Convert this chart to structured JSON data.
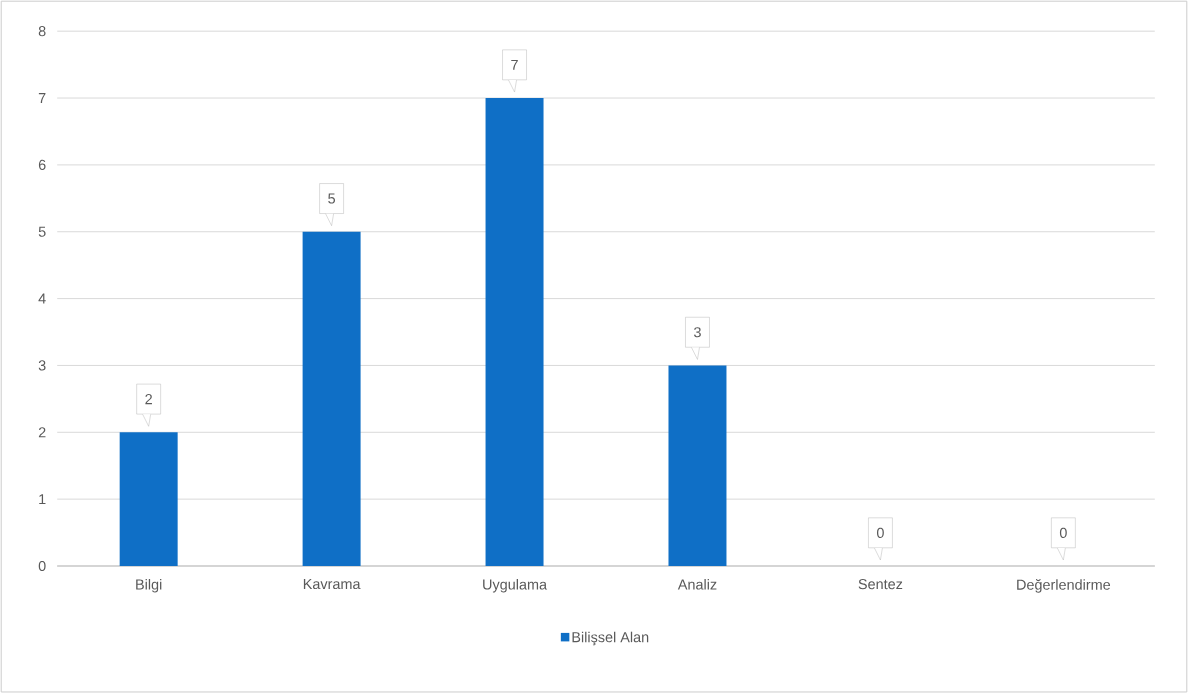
{
  "chart_data": {
    "type": "bar",
    "categories": [
      "Bilgi",
      "Kavrama",
      "Uygulama",
      "Analiz",
      "Sentez",
      "Değerlendirme"
    ],
    "series": [
      {
        "name": "Bilişsel Alan",
        "color": "#0f6fc6",
        "values": [
          2,
          5,
          7,
          3,
          0,
          0
        ]
      }
    ],
    "ylim": [
      0,
      8
    ],
    "yticks": [
      0,
      1,
      2,
      3,
      4,
      5,
      6,
      7,
      8
    ],
    "grid": "y",
    "legend": "bottom",
    "data_labels": true
  }
}
